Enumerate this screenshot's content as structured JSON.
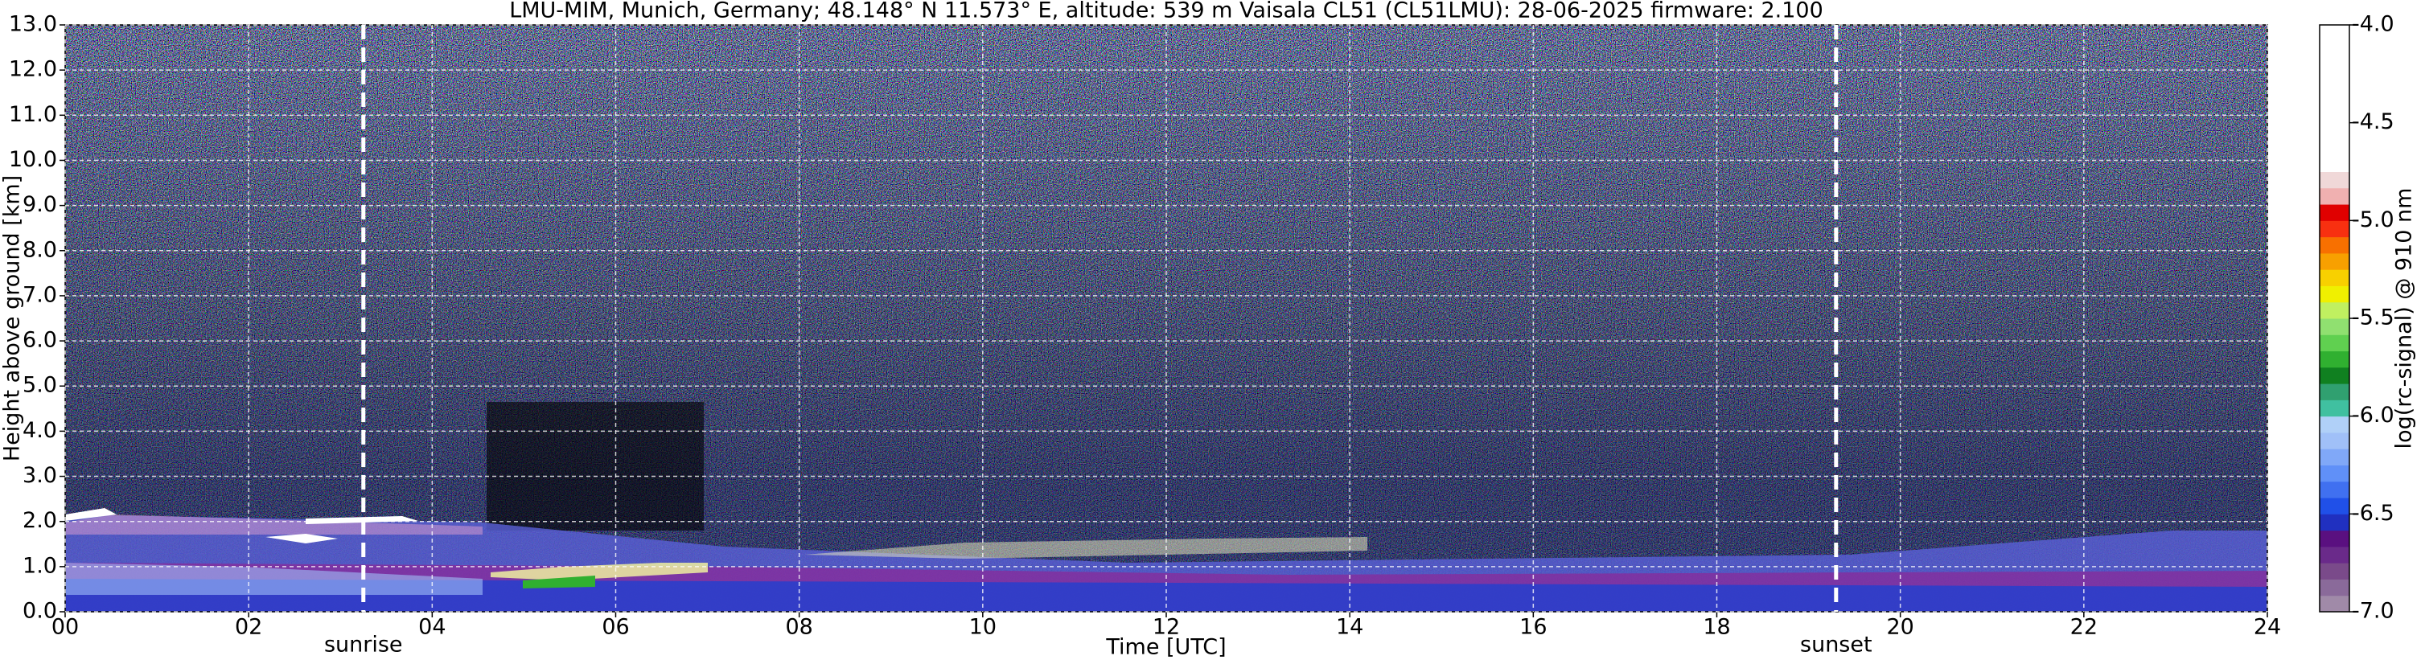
{
  "chart_data": {
    "type": "heatmap",
    "title": "LMU-MIM, Munich, Germany; 48.148° N 11.573° E, altitude: 539 m    Vaisala CL51 (CL51LMU): 28-06-2025    firmware: 2.100",
    "xlabel": "Time [UTC]",
    "ylabel": "Height above ground [km]",
    "xlim": [
      0,
      24
    ],
    "xticks": [
      {
        "value": 0,
        "label": "00"
      },
      {
        "value": 2,
        "label": "02"
      },
      {
        "value": 4,
        "label": "04"
      },
      {
        "value": 6,
        "label": "06"
      },
      {
        "value": 8,
        "label": "08"
      },
      {
        "value": 10,
        "label": "10"
      },
      {
        "value": 12,
        "label": "12"
      },
      {
        "value": 14,
        "label": "14"
      },
      {
        "value": 16,
        "label": "16"
      },
      {
        "value": 18,
        "label": "18"
      },
      {
        "value": 20,
        "label": "20"
      },
      {
        "value": 22,
        "label": "22"
      },
      {
        "value": 24,
        "label": "24"
      }
    ],
    "ylim": [
      0,
      13
    ],
    "yticks": [
      {
        "value": 0,
        "label": "0.0"
      },
      {
        "value": 1,
        "label": "1.0"
      },
      {
        "value": 2,
        "label": "2.0"
      },
      {
        "value": 3,
        "label": "3.0"
      },
      {
        "value": 4,
        "label": "4.0"
      },
      {
        "value": 5,
        "label": "5.0"
      },
      {
        "value": 6,
        "label": "6.0"
      },
      {
        "value": 7,
        "label": "7.0"
      },
      {
        "value": 8,
        "label": "8.0"
      },
      {
        "value": 9,
        "label": "9.0"
      },
      {
        "value": 10,
        "label": "10.0"
      },
      {
        "value": 11,
        "label": "11.0"
      },
      {
        "value": 12,
        "label": "12.0"
      },
      {
        "value": 13,
        "label": "13.0"
      }
    ],
    "grid": true,
    "annotations": [
      {
        "label": "sunrise",
        "x": 3.25
      },
      {
        "label": "sunset",
        "x": 19.3
      }
    ],
    "colorbar": {
      "label": "log(rc-signal) @ 910 nm",
      "lim": [
        -7,
        -4
      ],
      "ticks": [
        {
          "value": -7,
          "label": "-7.0"
        },
        {
          "value": -6.5,
          "label": "-6.5"
        },
        {
          "value": -6,
          "label": "-6.0"
        },
        {
          "value": -5.5,
          "label": "-5.5"
        },
        {
          "value": -5,
          "label": "-5.0"
        },
        {
          "value": -4.5,
          "label": "-4.5"
        },
        {
          "value": -4,
          "label": "-4.0"
        }
      ],
      "colors": [
        "#a08aa8",
        "#8a6a9a",
        "#7a4a8a",
        "#6a2a8a",
        "#5a1080",
        "#2030c0",
        "#2050e8",
        "#4070f0",
        "#6090f8",
        "#80a8f8",
        "#a0c0f8",
        "#b0d0f8",
        "#40c0a0",
        "#30a070",
        "#108020",
        "#30b030",
        "#60d050",
        "#90e070",
        "#c0f060",
        "#f0f000",
        "#f8d000",
        "#f8a000",
        "#f87000",
        "#f83010",
        "#e00000",
        "#f0b0b0",
        "#f0d8d8",
        "#ffffff",
        "#ffffff",
        "#ffffff",
        "#ffffff",
        "#ffffff",
        "#ffffff",
        "#ffffff",
        "#ffffff",
        "#ffffff"
      ]
    }
  }
}
